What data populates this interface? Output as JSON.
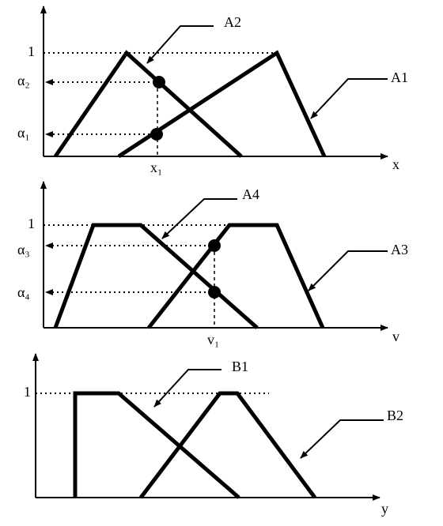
{
  "panels": [
    {
      "sets": [
        "A2",
        "A1"
      ],
      "one": "1",
      "alphas": [
        "α₂",
        "α₁"
      ],
      "point": "x₁",
      "axis": "x"
    },
    {
      "sets": [
        "A4",
        "A3"
      ],
      "one": "1",
      "alphas": [
        "α₃",
        "α₄"
      ],
      "point": "v₁",
      "axis": "v"
    },
    {
      "sets": [
        "B1",
        "B2"
      ],
      "one": "1",
      "axis": "y"
    }
  ]
}
